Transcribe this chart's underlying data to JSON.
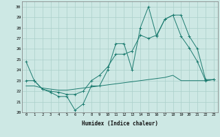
{
  "xlabel": "Humidex (Indice chaleur)",
  "bg_color": "#cde8e4",
  "grid_color": "#aacfca",
  "line_color": "#1a7a6e",
  "xlim": [
    -0.5,
    23.5
  ],
  "ylim": [
    20,
    30.5
  ],
  "xticks": [
    0,
    1,
    2,
    3,
    4,
    5,
    6,
    7,
    8,
    9,
    10,
    11,
    12,
    13,
    14,
    15,
    16,
    17,
    18,
    19,
    20,
    21,
    22,
    23
  ],
  "yticks": [
    20,
    21,
    22,
    23,
    24,
    25,
    26,
    27,
    28,
    29,
    30
  ],
  "series1": [
    24.8,
    23.0,
    22.2,
    21.9,
    21.5,
    21.5,
    20.2,
    20.8,
    22.5,
    22.5,
    24.0,
    26.5,
    26.5,
    24.0,
    28.0,
    30.0,
    27.2,
    28.8,
    29.2,
    27.2,
    26.1,
    24.8,
    23.0,
    23.1
  ],
  "series2": [
    23.0,
    23.0,
    22.2,
    22.0,
    21.9,
    21.7,
    21.7,
    22.0,
    23.0,
    23.5,
    24.3,
    25.5,
    25.5,
    25.8,
    27.3,
    27.0,
    27.3,
    28.8,
    29.2,
    29.2,
    27.2,
    26.0,
    23.1,
    23.1
  ],
  "series3": [
    22.5,
    22.5,
    22.3,
    22.2,
    22.1,
    22.1,
    22.2,
    22.3,
    22.4,
    22.5,
    22.6,
    22.7,
    22.8,
    22.9,
    23.0,
    23.1,
    23.2,
    23.3,
    23.5,
    23.0,
    23.0,
    23.0,
    23.0,
    23.1
  ]
}
